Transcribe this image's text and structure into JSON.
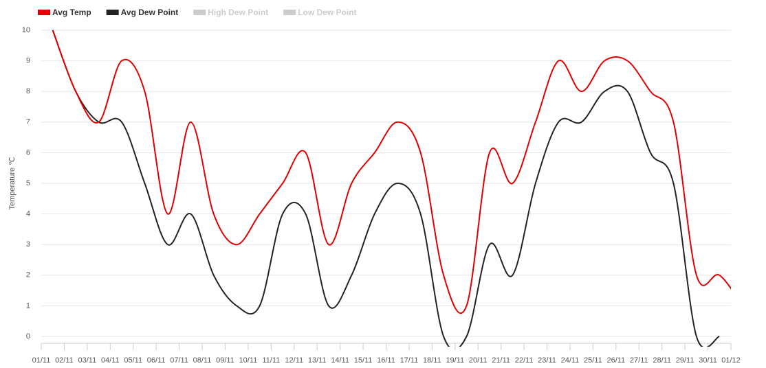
{
  "chart_data": {
    "type": "line",
    "y_label": "Temperature ℃",
    "categories": [
      "01/11",
      "02/11",
      "03/11",
      "04/11",
      "05/11",
      "06/11",
      "07/11",
      "08/11",
      "09/11",
      "10/11",
      "11/11",
      "12/11",
      "13/11",
      "14/11",
      "15/11",
      "16/11",
      "17/11",
      "18/11",
      "19/11",
      "20/11",
      "21/11",
      "22/11",
      "23/11",
      "24/11",
      "25/11",
      "26/11",
      "27/11",
      "28/11",
      "29/11",
      "30/11",
      "01/12"
    ],
    "series": [
      {
        "name": "Avg Temp",
        "color": "#e00000",
        "values": [
          10,
          8,
          7,
          9,
          8,
          4,
          7,
          4,
          3,
          4,
          5,
          6,
          3,
          5,
          6,
          7,
          6,
          2,
          1,
          6,
          5,
          7,
          9,
          8,
          9,
          9,
          8,
          7,
          2,
          2,
          1
        ]
      },
      {
        "name": "Avg Dew Point",
        "color": "#222222",
        "values": [
          10,
          8,
          7,
          7,
          5,
          3,
          4,
          2,
          1,
          1,
          4,
          4,
          1,
          2,
          4,
          5,
          4,
          0,
          0,
          3,
          2,
          5,
          7,
          7,
          8,
          8,
          6,
          5,
          0,
          0,
          null
        ]
      }
    ],
    "hidden_series": [
      {
        "name": "High Dew Point",
        "color": "#cccccc"
      },
      {
        "name": "Low Dew Point",
        "color": "#cccccc"
      }
    ],
    "ylim": [
      0,
      10
    ],
    "yticks": [
      0,
      1,
      2,
      3,
      4,
      5,
      6,
      7,
      8,
      9,
      10
    ],
    "grid": true
  }
}
